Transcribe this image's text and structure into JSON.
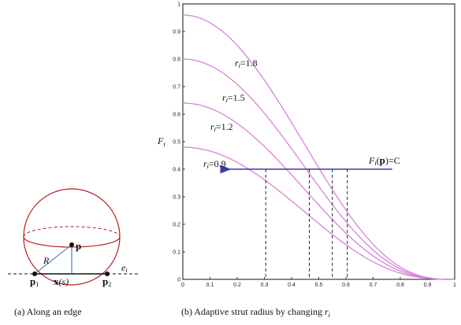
{
  "figure": {
    "subfig_a": {
      "caption": "(a)  Along an edge",
      "labels": {
        "point": "p",
        "radius": "R",
        "p1": "p",
        "p1_sub": "1",
        "p2": "p",
        "p2_sub": "2",
        "x": "x",
        "x_arg": "(s)",
        "edge": "e",
        "edge_sub": "i"
      }
    },
    "subfig_b": {
      "caption_main": "(b)  Adaptive strut radius by changing ",
      "caption_var": "r",
      "caption_sub": "i"
    }
  },
  "chart_data": {
    "type": "line",
    "ylabel": "F",
    "ylabel_sub": "i",
    "xlim": [
      0,
      1
    ],
    "ylim": [
      0,
      1
    ],
    "x_ticks": [
      "0",
      "0.1",
      "0.2",
      "0.3",
      "0.4",
      "0.5",
      "0.6",
      "0.7",
      "0.8",
      "0.9",
      "1"
    ],
    "y_ticks": [
      "0",
      "0.1",
      "0.2",
      "0.3",
      "0.4",
      "0.5",
      "0.6",
      "0.7",
      "0.8",
      "0.9",
      "1"
    ],
    "grid": false,
    "series": [
      {
        "name": "r_i=0.9",
        "label_var": "r",
        "label_sub": "i",
        "label_val": "=0.9",
        "r": 0.9,
        "peak": 0.48
      },
      {
        "name": "r_i=1.2",
        "label_var": "r",
        "label_sub": "i",
        "label_val": "=1.2",
        "r": 1.2,
        "peak": 0.64
      },
      {
        "name": "r_i=1.5",
        "label_var": "r",
        "label_sub": "i",
        "label_val": "=1.5",
        "r": 1.5,
        "peak": 0.8
      },
      {
        "name": "r_i=1.8",
        "label_var": "r",
        "label_sub": "i",
        "label_val": "=1.8",
        "r": 1.8,
        "peak": 0.96
      }
    ],
    "iso_line": {
      "y": 0.4,
      "x_from": 0.77,
      "x_to": 0.17,
      "label": "F",
      "label_sub": "i",
      "label_arg": "(p)",
      "label_rhs": "=C"
    },
    "intersections_x": [
      0.305,
      0.465,
      0.55,
      0.605
    ],
    "colors": {
      "curve": "#d982d9",
      "arrow": "#3a3ab0",
      "sphere": "#b21c1c",
      "radius": "#3a6fb0"
    }
  }
}
